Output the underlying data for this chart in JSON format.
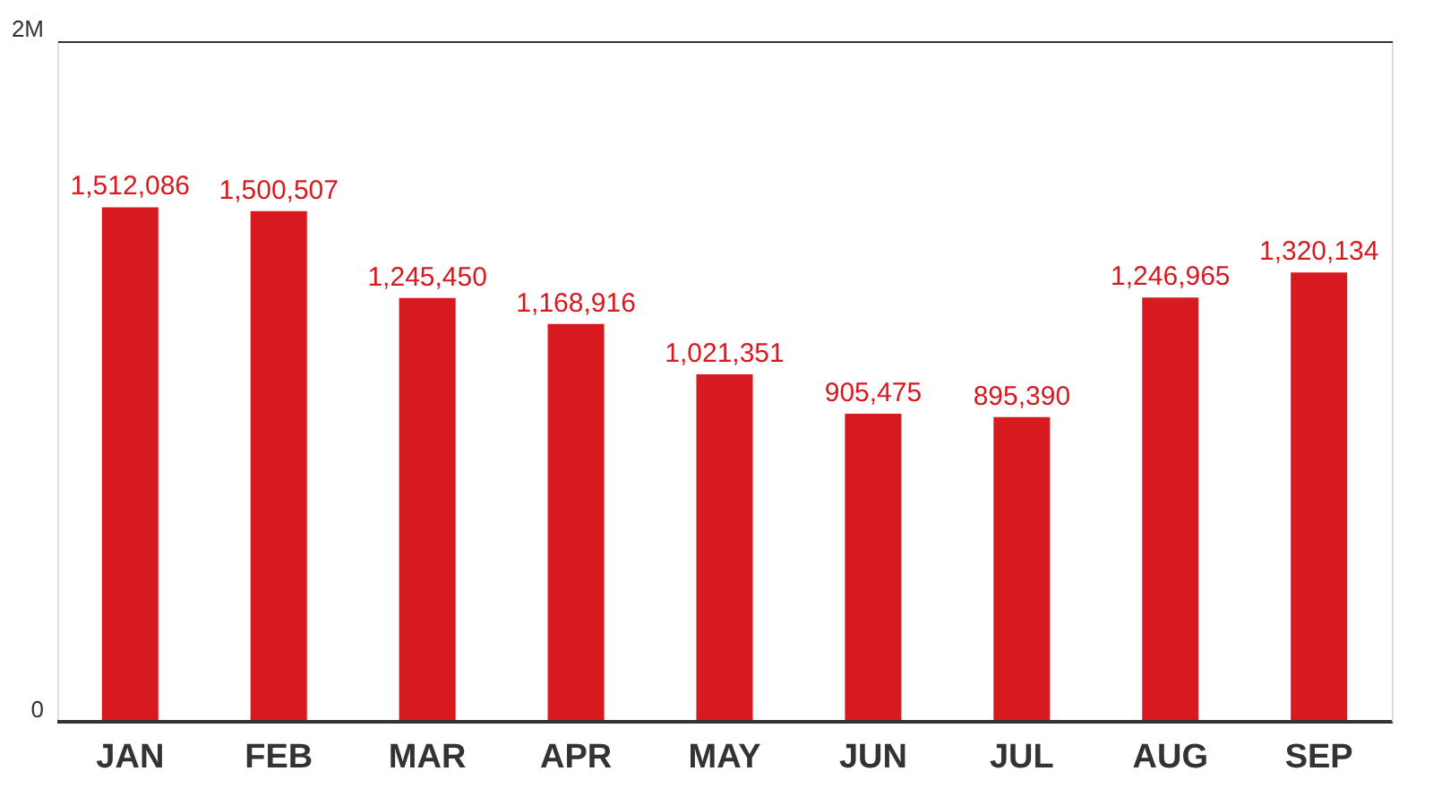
{
  "chart_data": {
    "type": "bar",
    "categories": [
      "JAN",
      "FEB",
      "MAR",
      "APR",
      "MAY",
      "JUN",
      "JUL",
      "AUG",
      "SEP"
    ],
    "values": [
      1512086,
      1500507,
      1245450,
      1168916,
      1021351,
      905475,
      895390,
      1246965,
      1320134
    ],
    "color": "#d71920",
    "ylim": [
      0,
      2000000
    ],
    "yticks": [
      {
        "value": 0,
        "label": "0"
      },
      {
        "value": 2000000,
        "label": "2M"
      }
    ],
    "grid": "y",
    "value_labels": [
      "1,512,086",
      "1,500,507",
      "1,245,450",
      "1,168,916",
      "1,021,351",
      "905,475",
      "895,390",
      "1,246,965",
      "1,320,134"
    ]
  }
}
